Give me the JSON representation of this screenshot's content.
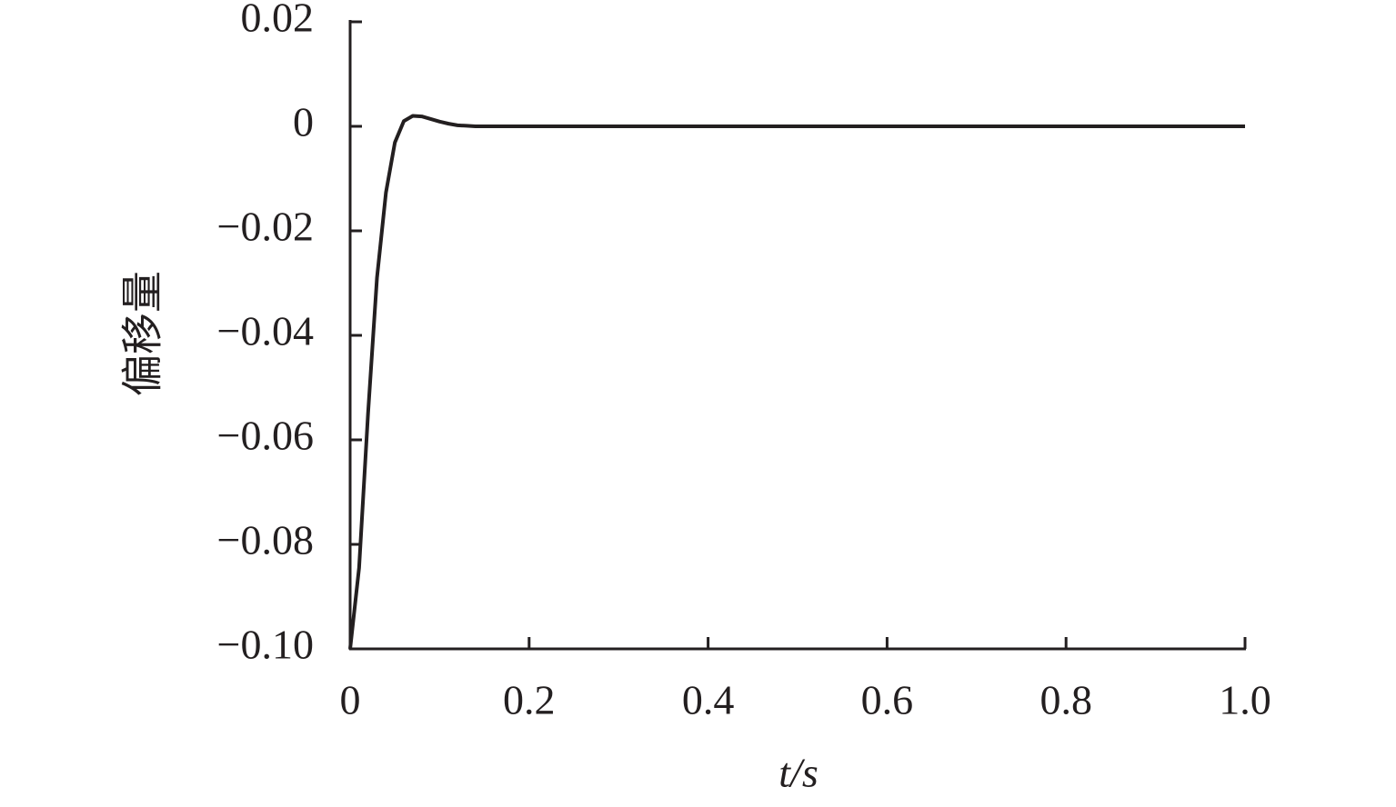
{
  "chart_data": {
    "type": "line",
    "x_label": "t/s",
    "y_label": "偏移量",
    "x": [
      0,
      0.01,
      0.02,
      0.03,
      0.04,
      0.05,
      0.06,
      0.07,
      0.08,
      0.09,
      0.1,
      0.11,
      0.12,
      0.13,
      0.14,
      0.15,
      1
    ],
    "series": [
      {
        "color": "#231f20",
        "values": [
          -0.1,
          -0.0845,
          -0.055,
          -0.029,
          -0.0127,
          -0.0031,
          0.001,
          0.002,
          0.0019,
          0.0014,
          0.0009,
          0.0005,
          0.0002,
          0.0001,
          0,
          0,
          0
        ]
      }
    ],
    "xlim": [
      0,
      1
    ],
    "ylim": [
      -0.1,
      0.02
    ],
    "xticks": [
      0,
      0.2,
      0.4,
      0.6,
      0.8,
      {
        "value": 1,
        "label": "1.0"
      }
    ],
    "yticks": [
      0.02,
      0,
      {
        "value": -0.02,
        "label": "−0.02"
      },
      {
        "value": -0.04,
        "label": "−0.04"
      },
      {
        "value": -0.06,
        "label": "−0.06"
      },
      {
        "value": -0.08,
        "label": "−0.08"
      },
      {
        "value": -0.1,
        "label": "−0.10"
      }
    ]
  }
}
